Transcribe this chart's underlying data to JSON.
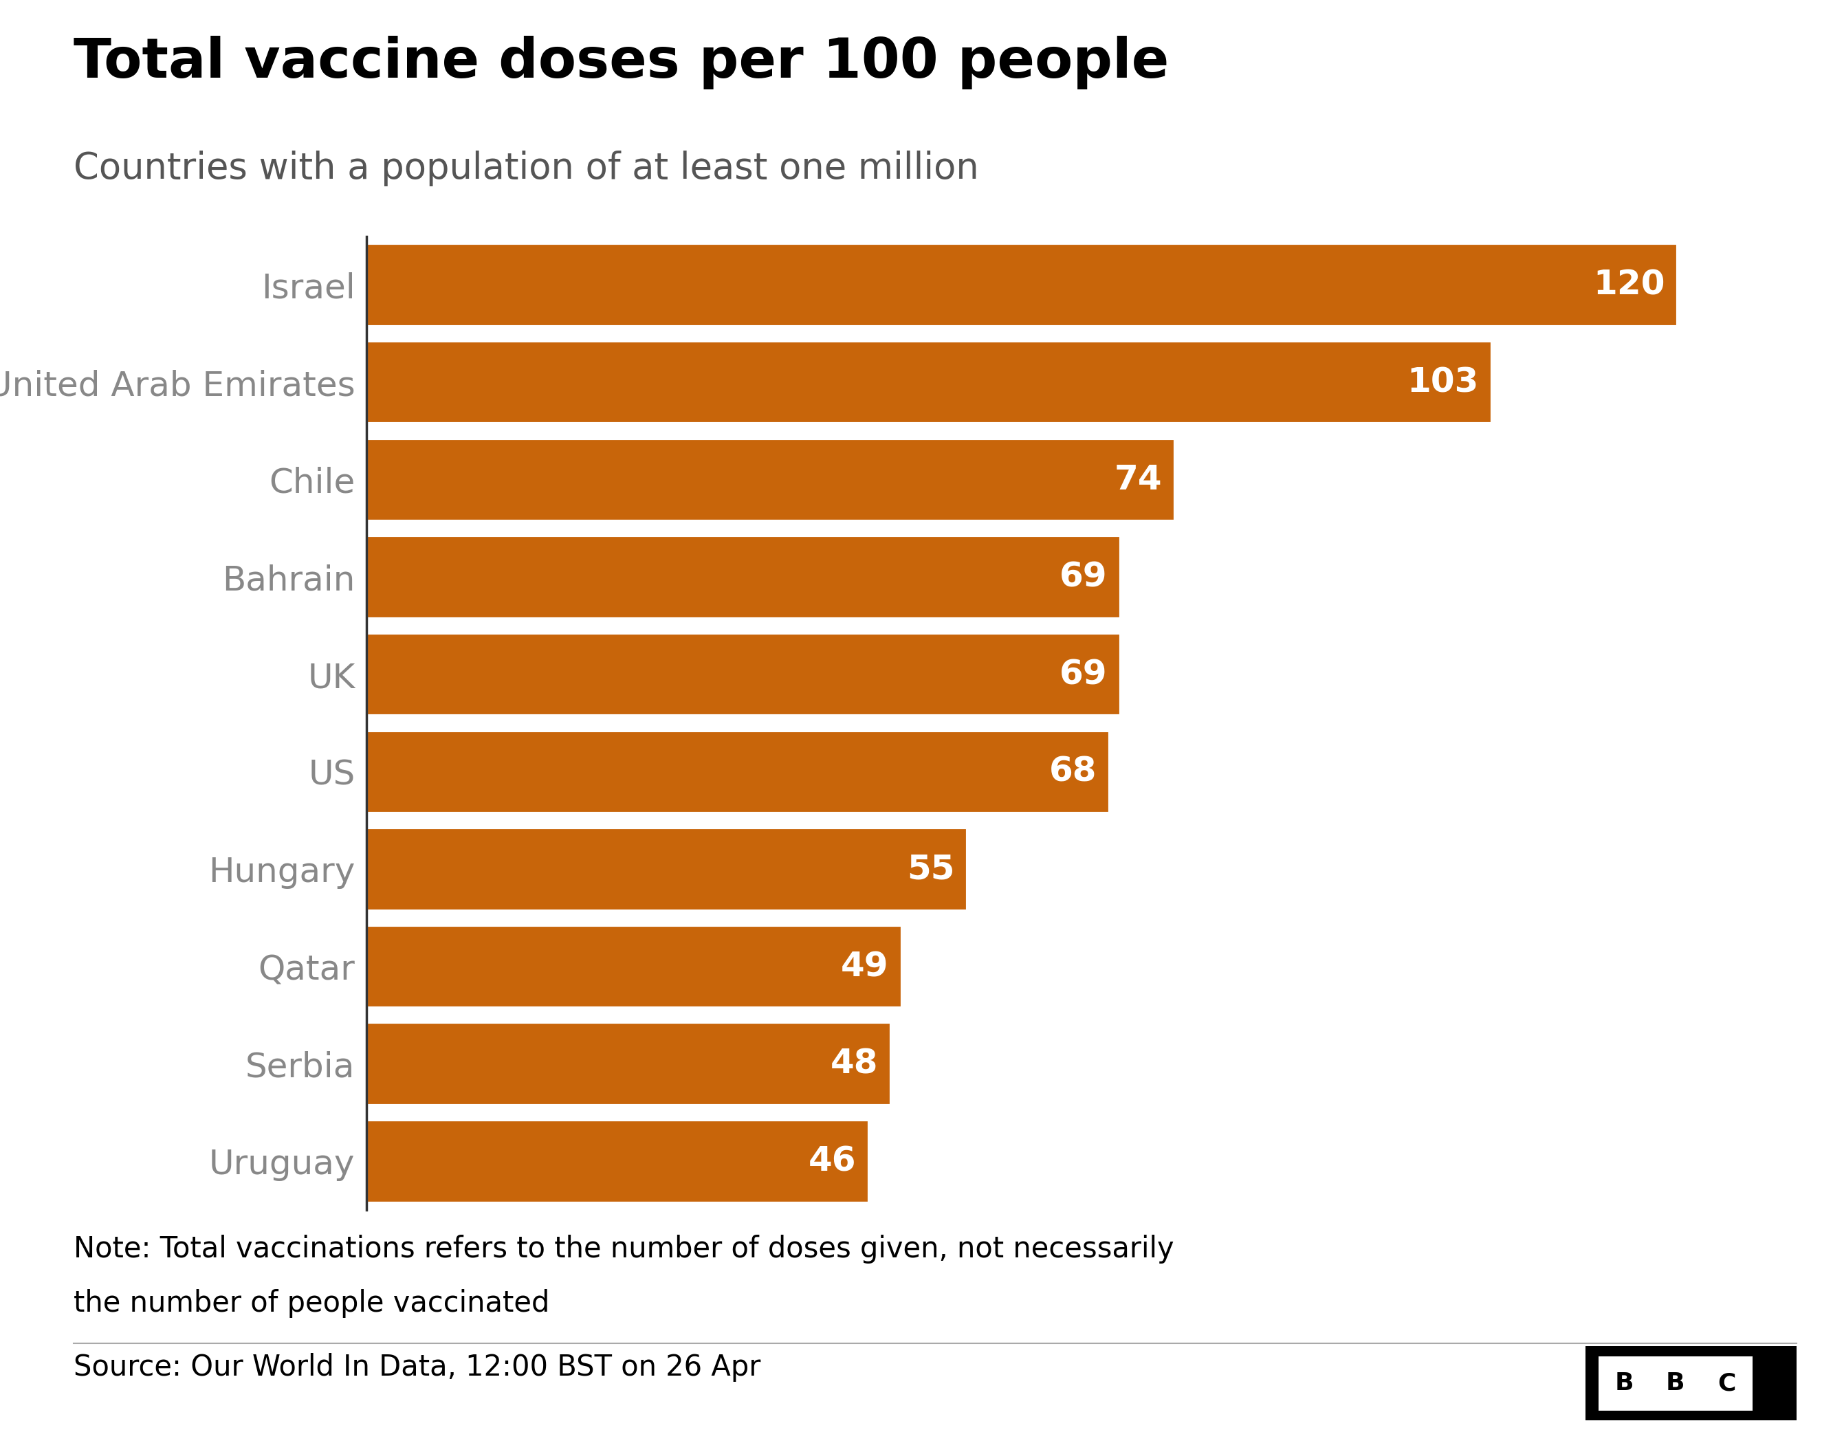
{
  "title": "Total vaccine doses per 100 people",
  "subtitle": "Countries with a population of at least one million",
  "countries": [
    "Israel",
    "United Arab Emirates",
    "Chile",
    "Bahrain",
    "UK",
    "US",
    "Hungary",
    "Qatar",
    "Serbia",
    "Uruguay"
  ],
  "values": [
    120,
    103,
    74,
    69,
    69,
    68,
    55,
    49,
    48,
    46
  ],
  "bar_color": "#C8650A",
  "label_color_inside": "#FFFFFF",
  "y_label_color": "#888888",
  "title_color": "#000000",
  "subtitle_color": "#555555",
  "background_color": "#FFFFFF",
  "note_line1": "Note: Total vaccinations refers to the number of doses given, not necessarily",
  "note_line2": "the number of people vaccinated",
  "source_text": "Source: Our World In Data, 12:00 BST on 26 Apr",
  "title_fontsize": 58,
  "subtitle_fontsize": 38,
  "label_fontsize": 36,
  "value_fontsize": 36,
  "note_fontsize": 30,
  "source_fontsize": 30,
  "xlim": [
    0,
    130
  ]
}
